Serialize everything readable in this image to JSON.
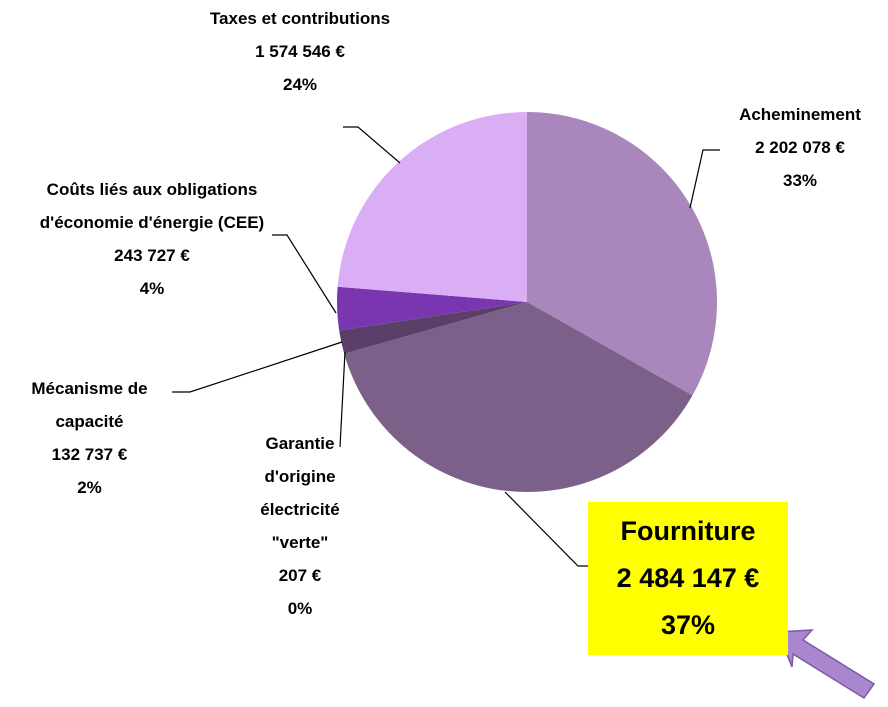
{
  "chart_data": {
    "type": "pie",
    "categories": [
      "Acheminement",
      "Fourniture",
      "Garantie d'origine électricité \"verte\"",
      "Mécanisme de capacité",
      "Coûts liés aux obligations d'économie d'énergie (CEE)",
      "Taxes et contributions"
    ],
    "values": [
      2202078,
      2484147,
      207,
      132737,
      243727,
      1574546
    ],
    "value_labels": [
      "2 202 078 €",
      "2 484 147 €",
      "207 €",
      "132 737 €",
      "243 727 €",
      "1 574 546 €"
    ],
    "percent_values": [
      33,
      37,
      0,
      2,
      4,
      24
    ],
    "percent_labels": [
      "33%",
      "37%",
      "0%",
      "2%",
      "4%",
      "24%"
    ],
    "colors": [
      "#a987bd",
      "#7b6189",
      "#4e3a5e",
      "#5a4068",
      "#7a35b0",
      "#d9aef5"
    ]
  }
}
